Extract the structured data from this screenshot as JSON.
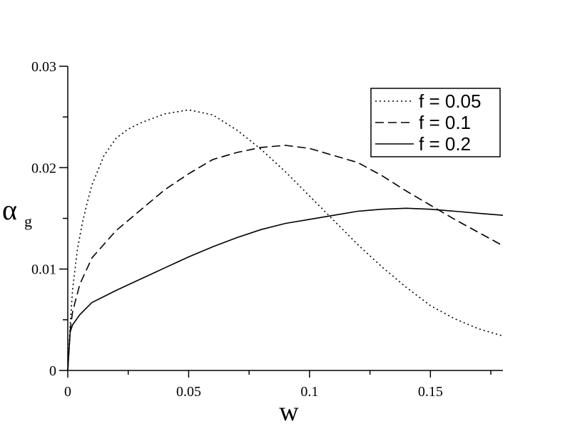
{
  "chart_data": {
    "type": "line",
    "xlabel": "w",
    "ylabel": "α",
    "ylabel_sub": "g",
    "xlim": [
      0,
      0.18
    ],
    "ylim": [
      0,
      0.03
    ],
    "x_ticks": [
      {
        "value": 0,
        "label": "0"
      },
      {
        "value": 0.05,
        "label": "0.05"
      },
      {
        "value": 0.1,
        "label": "0.1"
      },
      {
        "value": 0.15,
        "label": "0.15"
      }
    ],
    "x_minor_ticks": [
      0.025,
      0.075,
      0.125,
      0.175
    ],
    "y_ticks": [
      {
        "value": 0,
        "label": "0"
      },
      {
        "value": 0.01,
        "label": "0.01"
      },
      {
        "value": 0.02,
        "label": "0.02"
      },
      {
        "value": 0.03,
        "label": "0.03"
      }
    ],
    "y_minor_ticks": [
      0.005,
      0.015,
      0.025
    ],
    "grid": false,
    "legend_position": "top-right",
    "series": [
      {
        "name": "f = 0.05",
        "style": "dotted",
        "x": [
          0,
          0.001,
          0.002,
          0.004,
          0.006,
          0.008,
          0.01,
          0.015,
          0.02,
          0.025,
          0.03,
          0.04,
          0.05,
          0.06,
          0.07,
          0.08,
          0.09,
          0.1,
          0.11,
          0.12,
          0.13,
          0.14,
          0.15,
          0.16,
          0.17,
          0.18
        ],
        "y": [
          0,
          0.0045,
          0.008,
          0.012,
          0.0145,
          0.0165,
          0.0183,
          0.0212,
          0.0229,
          0.0238,
          0.0244,
          0.0253,
          0.0257,
          0.0252,
          0.0237,
          0.0218,
          0.0196,
          0.0172,
          0.0148,
          0.0124,
          0.0102,
          0.0082,
          0.0064,
          0.0051,
          0.0041,
          0.0034
        ]
      },
      {
        "name": "f = 0.1",
        "style": "dashed",
        "x": [
          0,
          0.001,
          0.002,
          0.005,
          0.01,
          0.02,
          0.03,
          0.04,
          0.05,
          0.06,
          0.07,
          0.08,
          0.09,
          0.1,
          0.11,
          0.12,
          0.13,
          0.14,
          0.15,
          0.16,
          0.17,
          0.18
        ],
        "y": [
          0,
          0.004,
          0.0058,
          0.0085,
          0.0111,
          0.0138,
          0.0158,
          0.0178,
          0.0194,
          0.0208,
          0.0215,
          0.022,
          0.0222,
          0.0219,
          0.0212,
          0.0205,
          0.0192,
          0.0177,
          0.0163,
          0.0149,
          0.0136,
          0.0123
        ]
      },
      {
        "name": "f = 0.2",
        "style": "solid",
        "x": [
          0,
          0.001,
          0.002,
          0.005,
          0.01,
          0.02,
          0.03,
          0.04,
          0.05,
          0.06,
          0.07,
          0.08,
          0.09,
          0.1,
          0.11,
          0.12,
          0.13,
          0.14,
          0.15,
          0.16,
          0.17,
          0.18
        ],
        "y": [
          0,
          0.0038,
          0.0045,
          0.0055,
          0.0067,
          0.0079,
          0.009,
          0.0101,
          0.0112,
          0.0122,
          0.0131,
          0.0139,
          0.0145,
          0.0149,
          0.0153,
          0.0157,
          0.0159,
          0.016,
          0.0159,
          0.0157,
          0.0155,
          0.0153
        ]
      }
    ]
  }
}
